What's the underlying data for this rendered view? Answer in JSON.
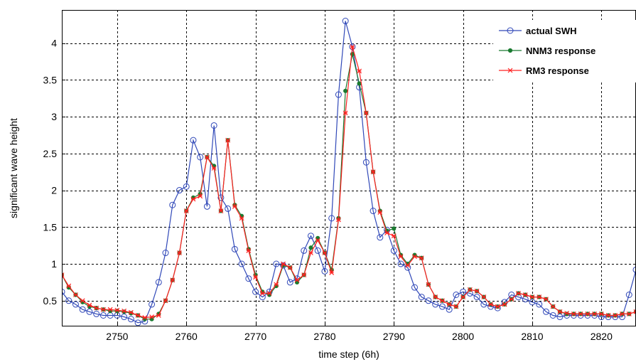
{
  "chart_data": {
    "type": "line",
    "title": "",
    "xlabel": "time step (6h)",
    "ylabel": "significant wave height",
    "xlim": [
      2742,
      2825
    ],
    "ylim": [
      0.15,
      4.45
    ],
    "xticks": [
      2750,
      2760,
      2770,
      2780,
      2790,
      2800,
      2810,
      2820
    ],
    "xtick_labels": [
      "2750",
      "2760",
      "2770",
      "2780",
      "2790",
      "2800",
      "2810",
      "2820"
    ],
    "yticks": [
      0.5,
      1,
      1.5,
      2,
      2.5,
      3,
      3.5,
      4
    ],
    "ytick_labels": [
      "0.5",
      "1",
      "1.5",
      "2",
      "2.5",
      "3",
      "3.5",
      "4"
    ],
    "grid": true,
    "legend_position": "top-right",
    "x": [
      2742,
      2743,
      2744,
      2745,
      2746,
      2747,
      2748,
      2749,
      2750,
      2751,
      2752,
      2753,
      2754,
      2755,
      2756,
      2757,
      2758,
      2759,
      2760,
      2761,
      2762,
      2763,
      2764,
      2765,
      2766,
      2767,
      2768,
      2769,
      2770,
      2771,
      2772,
      2773,
      2774,
      2775,
      2776,
      2777,
      2778,
      2779,
      2780,
      2781,
      2782,
      2783,
      2784,
      2785,
      2786,
      2787,
      2788,
      2789,
      2790,
      2791,
      2792,
      2793,
      2794,
      2795,
      2796,
      2797,
      2798,
      2799,
      2800,
      2801,
      2802,
      2803,
      2804,
      2805,
      2806,
      2807,
      2808,
      2809,
      2810,
      2811,
      2812,
      2813,
      2814,
      2815,
      2816,
      2817,
      2818,
      2819,
      2820,
      2821,
      2822,
      2823,
      2824,
      2825
    ],
    "series": [
      {
        "name": "actual SWH",
        "color": "#3048b8",
        "marker": "circle",
        "values": [
          0.62,
          0.5,
          0.45,
          0.38,
          0.35,
          0.32,
          0.3,
          0.3,
          0.3,
          0.28,
          0.25,
          0.2,
          0.22,
          0.45,
          0.75,
          1.15,
          1.8,
          2.0,
          2.05,
          2.68,
          2.45,
          1.78,
          2.88,
          1.9,
          1.75,
          1.2,
          1.0,
          0.8,
          0.62,
          0.55,
          0.62,
          1.0,
          0.98,
          0.75,
          0.8,
          1.18,
          1.38,
          1.18,
          0.9,
          1.62,
          3.3,
          4.3,
          3.95,
          3.4,
          2.38,
          1.72,
          1.36,
          1.46,
          1.18,
          1.0,
          0.95,
          0.68,
          0.55,
          0.5,
          0.45,
          0.42,
          0.38,
          0.58,
          0.62,
          0.6,
          0.55,
          0.45,
          0.42,
          0.4,
          0.48,
          0.58,
          0.55,
          0.52,
          0.48,
          0.45,
          0.35,
          0.3,
          0.28,
          0.3,
          0.3,
          0.3,
          0.3,
          0.3,
          0.28,
          0.28,
          0.28,
          0.28,
          0.58,
          0.92
        ]
      },
      {
        "name": "NNM3 response",
        "color": "#1a7a30",
        "marker": "dot",
        "values": [
          0.85,
          0.68,
          0.58,
          0.48,
          0.42,
          0.4,
          0.38,
          0.36,
          0.36,
          0.35,
          0.33,
          0.3,
          0.25,
          0.25,
          0.32,
          0.5,
          0.78,
          1.15,
          1.72,
          1.9,
          1.95,
          2.45,
          2.33,
          1.72,
          2.68,
          1.8,
          1.65,
          1.2,
          0.85,
          0.62,
          0.58,
          0.7,
          0.98,
          0.95,
          0.75,
          0.85,
          1.22,
          1.35,
          1.15,
          0.92,
          1.62,
          3.35,
          3.85,
          3.45,
          3.05,
          2.25,
          1.72,
          1.45,
          1.48,
          1.12,
          1.0,
          1.12,
          1.08,
          0.72,
          0.55,
          0.5,
          0.45,
          0.42,
          0.55,
          0.65,
          0.63,
          0.55,
          0.45,
          0.42,
          0.45,
          0.52,
          0.6,
          0.58,
          0.55,
          0.55,
          0.52,
          0.42,
          0.35,
          0.32,
          0.32,
          0.32,
          0.32,
          0.32,
          0.32,
          0.3,
          0.3,
          0.32,
          0.32,
          0.35
        ]
      },
      {
        "name": "RM3 response",
        "color": "#ff2020",
        "marker": "x",
        "values": [
          0.85,
          0.7,
          0.58,
          0.5,
          0.44,
          0.4,
          0.38,
          0.38,
          0.37,
          0.36,
          0.34,
          0.3,
          0.27,
          0.28,
          0.3,
          0.5,
          0.78,
          1.15,
          1.72,
          1.88,
          1.92,
          2.45,
          2.3,
          1.72,
          2.68,
          1.78,
          1.62,
          1.18,
          0.82,
          0.6,
          0.6,
          0.72,
          1.0,
          0.95,
          0.78,
          0.85,
          1.15,
          1.32,
          1.15,
          0.88,
          1.6,
          3.05,
          3.95,
          3.62,
          3.05,
          2.25,
          1.7,
          1.42,
          1.38,
          1.1,
          0.98,
          1.1,
          1.08,
          0.72,
          0.55,
          0.5,
          0.45,
          0.42,
          0.55,
          0.65,
          0.63,
          0.55,
          0.45,
          0.42,
          0.45,
          0.52,
          0.6,
          0.58,
          0.55,
          0.55,
          0.52,
          0.42,
          0.35,
          0.33,
          0.32,
          0.32,
          0.32,
          0.32,
          0.32,
          0.3,
          0.3,
          0.32,
          0.32,
          0.35
        ]
      }
    ]
  }
}
